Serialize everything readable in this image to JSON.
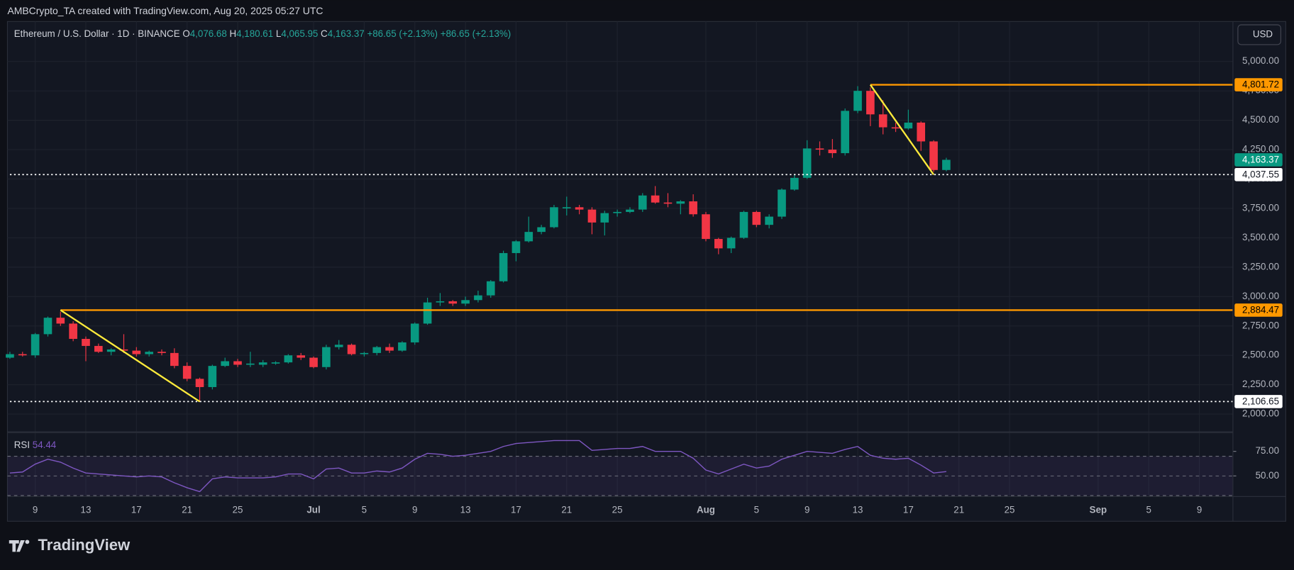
{
  "attribution": "AMBCrypto_TA created with TradingView.com, Aug 20, 2025 05:27 UTC",
  "brand": "TradingView",
  "currency_button": "USD",
  "chart_data": {
    "type": "candlestick",
    "legend": {
      "symbol": "Ethereum / U.S. Dollar · 1D · BINANCE",
      "o_label": "O",
      "o": "4,076.68",
      "h_label": "H",
      "h": "4,180.61",
      "l_label": "L",
      "l": "4,065.95",
      "c_label": "C",
      "c": "4,163.37",
      "change": "+86.65 (+2.13%)",
      "change2": "+86.65 (+2.13%)"
    },
    "up_color": "#089981",
    "down_color": "#f23645",
    "x": [
      "Jun 7",
      "Jun 8",
      "Jun 9",
      "Jun 10",
      "Jun 11",
      "Jun 12",
      "Jun 13",
      "Jun 14",
      "Jun 15",
      "Jun 16",
      "Jun 17",
      "Jun 18",
      "Jun 19",
      "Jun 20",
      "Jun 21",
      "Jun 22",
      "Jun 23",
      "Jun 24",
      "Jun 25",
      "Jun 26",
      "Jun 27",
      "Jun 28",
      "Jun 29",
      "Jun 30",
      "Jul 1",
      "Jul 2",
      "Jul 3",
      "Jul 4",
      "Jul 5",
      "Jul 6",
      "Jul 7",
      "Jul 8",
      "Jul 9",
      "Jul 10",
      "Jul 11",
      "Jul 12",
      "Jul 13",
      "Jul 14",
      "Jul 15",
      "Jul 16",
      "Jul 17",
      "Jul 18",
      "Jul 19",
      "Jul 20",
      "Jul 21",
      "Jul 22",
      "Jul 23",
      "Jul 24",
      "Jul 25",
      "Jul 26",
      "Jul 27",
      "Jul 28",
      "Jul 29",
      "Jul 30",
      "Jul 31",
      "Aug 1",
      "Aug 2",
      "Aug 3",
      "Aug 4",
      "Aug 5",
      "Aug 6",
      "Aug 7",
      "Aug 8",
      "Aug 9",
      "Aug 10",
      "Aug 11",
      "Aug 12",
      "Aug 13",
      "Aug 14",
      "Aug 15",
      "Aug 16",
      "Aug 17",
      "Aug 18",
      "Aug 19",
      "Aug 20"
    ],
    "ohlc": [
      [
        2480,
        2530,
        2470,
        2510
      ],
      [
        2510,
        2530,
        2490,
        2500
      ],
      [
        2500,
        2690,
        2480,
        2680
      ],
      [
        2680,
        2830,
        2660,
        2820
      ],
      [
        2820,
        2870,
        2750,
        2770
      ],
      [
        2770,
        2790,
        2620,
        2640
      ],
      [
        2640,
        2660,
        2450,
        2580
      ],
      [
        2580,
        2600,
        2520,
        2530
      ],
      [
        2530,
        2560,
        2500,
        2550
      ],
      [
        2550,
        2680,
        2520,
        2540
      ],
      [
        2540,
        2570,
        2490,
        2510
      ],
      [
        2510,
        2540,
        2490,
        2530
      ],
      [
        2530,
        2550,
        2500,
        2520
      ],
      [
        2520,
        2560,
        2390,
        2410
      ],
      [
        2410,
        2440,
        2280,
        2300
      ],
      [
        2300,
        2310,
        2110,
        2230
      ],
      [
        2230,
        2420,
        2210,
        2410
      ],
      [
        2410,
        2480,
        2400,
        2450
      ],
      [
        2450,
        2470,
        2400,
        2420
      ],
      [
        2420,
        2530,
        2400,
        2430
      ],
      [
        2420,
        2460,
        2400,
        2440
      ],
      [
        2430,
        2450,
        2420,
        2440
      ],
      [
        2440,
        2510,
        2430,
        2500
      ],
      [
        2500,
        2520,
        2460,
        2480
      ],
      [
        2480,
        2490,
        2390,
        2400
      ],
      [
        2400,
        2590,
        2380,
        2570
      ],
      [
        2570,
        2630,
        2550,
        2590
      ],
      [
        2590,
        2600,
        2500,
        2510
      ],
      [
        2510,
        2530,
        2490,
        2520
      ],
      [
        2520,
        2580,
        2500,
        2570
      ],
      [
        2570,
        2600,
        2520,
        2540
      ],
      [
        2540,
        2620,
        2530,
        2610
      ],
      [
        2610,
        2780,
        2590,
        2770
      ],
      [
        2770,
        2990,
        2760,
        2950
      ],
      [
        2950,
        3030,
        2920,
        2960
      ],
      [
        2960,
        2970,
        2920,
        2940
      ],
      [
        2940,
        3000,
        2920,
        2970
      ],
      [
        2970,
        3050,
        2950,
        3010
      ],
      [
        3010,
        3140,
        2990,
        3130
      ],
      [
        3130,
        3390,
        3120,
        3370
      ],
      [
        3370,
        3480,
        3300,
        3470
      ],
      [
        3470,
        3680,
        3460,
        3550
      ],
      [
        3550,
        3610,
        3530,
        3590
      ],
      [
        3590,
        3780,
        3580,
        3760
      ],
      [
        3750,
        3850,
        3690,
        3760
      ],
      [
        3760,
        3780,
        3700,
        3740
      ],
      [
        3740,
        3760,
        3530,
        3630
      ],
      [
        3630,
        3730,
        3520,
        3710
      ],
      [
        3710,
        3740,
        3680,
        3720
      ],
      [
        3720,
        3760,
        3710,
        3740
      ],
      [
        3740,
        3880,
        3720,
        3860
      ],
      [
        3860,
        3940,
        3790,
        3800
      ],
      [
        3800,
        3880,
        3760,
        3790
      ],
      [
        3790,
        3820,
        3700,
        3810
      ],
      [
        3810,
        3870,
        3680,
        3700
      ],
      [
        3700,
        3720,
        3470,
        3490
      ],
      [
        3490,
        3500,
        3360,
        3410
      ],
      [
        3410,
        3510,
        3370,
        3500
      ],
      [
        3500,
        3730,
        3490,
        3720
      ],
      [
        3720,
        3730,
        3590,
        3610
      ],
      [
        3610,
        3700,
        3580,
        3680
      ],
      [
        3680,
        3920,
        3660,
        3910
      ],
      [
        3910,
        4040,
        3900,
        4010
      ],
      [
        4010,
        4330,
        4000,
        4260
      ],
      [
        4260,
        4320,
        4200,
        4250
      ],
      [
        4250,
        4340,
        4180,
        4220
      ],
      [
        4220,
        4600,
        4200,
        4580
      ],
      [
        4580,
        4790,
        4560,
        4750
      ],
      [
        4750,
        4780,
        4450,
        4550
      ],
      [
        4550,
        4670,
        4380,
        4440
      ],
      [
        4440,
        4480,
        4400,
        4430
      ],
      [
        4430,
        4590,
        4420,
        4480
      ],
      [
        4480,
        4490,
        4240,
        4320
      ],
      [
        4320,
        4330,
        4060,
        4076.68
      ],
      [
        4076.68,
        4180.61,
        4065.95,
        4163.37
      ]
    ],
    "xlim": [
      "Jun 7",
      "Sep 11"
    ],
    "xticks": [
      {
        "value": "Jun 9",
        "label": "9"
      },
      {
        "value": "Jun 13",
        "label": "13"
      },
      {
        "value": "Jun 17",
        "label": "17"
      },
      {
        "value": "Jun 21",
        "label": "21"
      },
      {
        "value": "Jun 25",
        "label": "25"
      },
      {
        "value": "Jul 1",
        "label": "Jul"
      },
      {
        "value": "Jul 5",
        "label": "5"
      },
      {
        "value": "Jul 9",
        "label": "9"
      },
      {
        "value": "Jul 13",
        "label": "13"
      },
      {
        "value": "Jul 17",
        "label": "17"
      },
      {
        "value": "Jul 21",
        "label": "21"
      },
      {
        "value": "Jul 25",
        "label": "25"
      },
      {
        "value": "Aug 1",
        "label": "Aug"
      },
      {
        "value": "Aug 5",
        "label": "5"
      },
      {
        "value": "Aug 9",
        "label": "9"
      },
      {
        "value": "Aug 13",
        "label": "13"
      },
      {
        "value": "Aug 17",
        "label": "17"
      },
      {
        "value": "Aug 21",
        "label": "21"
      },
      {
        "value": "Aug 25",
        "label": "25"
      },
      {
        "value": "Sep 1",
        "label": "Sep"
      },
      {
        "value": "Sep 5",
        "label": "5"
      },
      {
        "value": "Sep 9",
        "label": "9"
      }
    ],
    "ylim": [
      1860,
      5340
    ],
    "yticks": [
      {
        "value": 2000,
        "label": "2,000.00"
      },
      {
        "value": 2250,
        "label": "2,250.00"
      },
      {
        "value": 2500,
        "label": "2,500.00"
      },
      {
        "value": 2750,
        "label": "2,750.00"
      },
      {
        "value": 3000,
        "label": "3,000.00"
      },
      {
        "value": 3250,
        "label": "3,250.00"
      },
      {
        "value": 3500,
        "label": "3,500.00"
      },
      {
        "value": 3750,
        "label": "3,750.00"
      },
      {
        "value": 4000,
        "label": "4,000.00"
      },
      {
        "value": 4250,
        "label": "4,250.00"
      },
      {
        "value": 4500,
        "label": "4,500.00"
      },
      {
        "value": 4750,
        "label": "4,750.00"
      },
      {
        "value": 5000,
        "label": "5,000.00"
      }
    ],
    "grid": true,
    "levels": [
      {
        "value": 4801.72,
        "label": "4,801.72",
        "from": "Aug 14",
        "color": "#ff9800",
        "style": "solid"
      },
      {
        "value": 2884.47,
        "label": "2,884.47",
        "from": "Jun 11",
        "color": "#ff9800",
        "style": "solid"
      },
      {
        "value": 4037.55,
        "label": "4,037.55",
        "from": "Jun 7",
        "color": "#ffffff",
        "style": "dotted"
      },
      {
        "value": 2106.65,
        "label": "2,106.65",
        "from": "Jun 7",
        "color": "#ffffff",
        "style": "dotted"
      }
    ],
    "last_price": {
      "value": 4163.37,
      "label": "4,163.37"
    },
    "trendlines": [
      {
        "from": "Jun 11",
        "from_value": 2884.47,
        "to": "Jun 22",
        "to_value": 2106.65,
        "color": "#ffeb3b"
      },
      {
        "from": "Aug 14",
        "from_value": 4801.72,
        "to": "Aug 19",
        "to_value": 4037.55,
        "color": "#ffeb3b"
      }
    ],
    "rsi": {
      "label": "RSI",
      "color": "#7e57c2",
      "values": [
        53,
        54,
        62,
        67,
        64,
        58,
        53,
        52,
        51,
        50,
        49,
        50,
        49,
        43,
        38,
        34,
        47,
        49,
        48,
        48,
        48,
        49,
        52,
        52,
        47,
        57,
        58,
        53,
        53,
        55,
        54,
        58,
        67,
        73,
        72,
        70,
        71,
        73,
        75,
        80,
        83,
        84,
        85,
        86,
        86,
        86,
        76,
        77,
        78,
        78,
        80,
        75,
        75,
        75,
        68,
        56,
        52,
        57,
        62,
        58,
        60,
        67,
        71,
        75,
        74,
        73,
        77,
        80,
        71,
        68,
        67,
        68,
        61,
        53,
        54.44
      ],
      "ylim": [
        29,
        92
      ],
      "bands": [
        30,
        50,
        70
      ],
      "yticks": [
        {
          "value": 75,
          "label": "75.00"
        },
        {
          "value": 50,
          "label": "50.00"
        }
      ]
    }
  }
}
